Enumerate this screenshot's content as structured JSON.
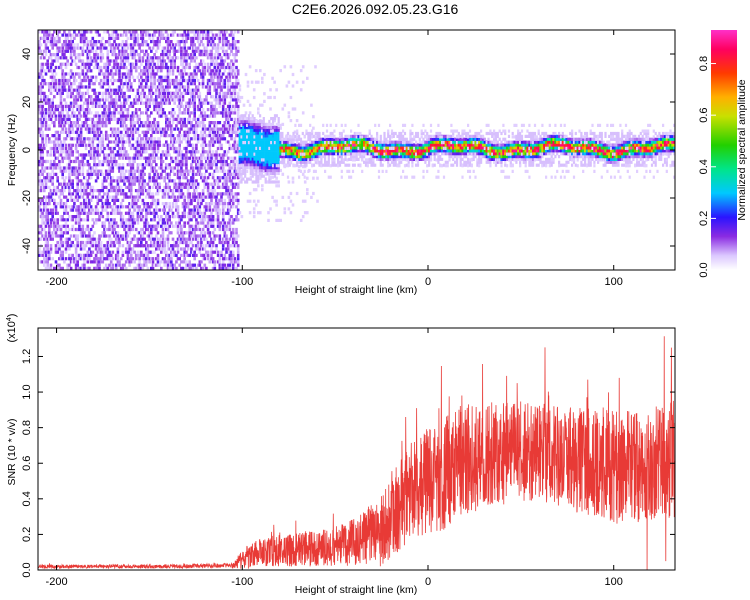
{
  "title": "C2E6.2026.092.05.23.G16",
  "chart_data": [
    {
      "type": "heatmap",
      "name": "spectrogram",
      "xlabel": "Height of straight line (km)",
      "ylabel": "Frequency (Hz)",
      "xlim": [
        -210,
        133
      ],
      "ylim": [
        -50,
        50
      ],
      "xticks": [
        -200,
        -100,
        0,
        100
      ],
      "yticks": [
        -40,
        -20,
        0,
        20,
        40
      ],
      "xtick_labels": [
        "-200",
        "-100",
        "0",
        "100"
      ],
      "ytick_labels": [
        "-40",
        "-20",
        "0",
        "20",
        "40"
      ],
      "description_regions": [
        {
          "x_range": [
            -210,
            -102
          ],
          "freq_range": [
            -50,
            50
          ],
          "amplitude": [
            0.05,
            0.15
          ],
          "pattern": "broadband noise"
        },
        {
          "x_range": [
            -102,
            133
          ],
          "freq_center": 0,
          "freq_halfwidth": 5,
          "amplitude_peak": 0.9,
          "pattern": "narrow line near 0 Hz"
        }
      ],
      "colorbar": {
        "label": "Normalized spectral amplitude",
        "range": [
          0.0,
          0.93
        ],
        "ticks": [
          0.0,
          0.2,
          0.4,
          0.6,
          0.8
        ],
        "tick_labels": [
          "0.0",
          "0.2",
          "0.4",
          "0.6",
          "0.8"
        ]
      }
    },
    {
      "type": "line",
      "name": "snr",
      "xlabel": "Height of straight line (km)",
      "ylabel": "SNR (10 * v/v)",
      "yscale_label": "(x10",
      "yscale_exp": "4",
      "yscale_close": ")",
      "xlim": [
        -210,
        133
      ],
      "ylim": [
        0,
        1.36
      ],
      "xticks": [
        -200,
        -100,
        0,
        100
      ],
      "yticks": [
        0.0,
        0.2,
        0.4,
        0.6,
        0.8,
        1.0,
        1.2
      ],
      "xtick_labels": [
        "-200",
        "-100",
        "0",
        "100"
      ],
      "ytick_labels": [
        "0.0",
        "0.2",
        "0.4",
        "0.6",
        "0.8",
        "1.0",
        "1.2"
      ],
      "color": "#e83a36",
      "series": [
        {
          "name": "SNR",
          "envelope_x": [
            -210,
            -150,
            -105,
            -100,
            -90,
            -80,
            -60,
            -45,
            -35,
            -25,
            -20,
            -15,
            -10,
            0,
            10,
            20,
            30,
            40,
            50,
            60,
            70,
            80,
            90,
            100,
            110,
            120,
            133
          ],
          "envelope_base": [
            0.02,
            0.02,
            0.025,
            0.06,
            0.1,
            0.12,
            0.12,
            0.14,
            0.18,
            0.22,
            0.3,
            0.36,
            0.45,
            0.5,
            0.55,
            0.62,
            0.64,
            0.66,
            0.66,
            0.66,
            0.64,
            0.62,
            0.6,
            0.58,
            0.58,
            0.6,
            0.62
          ],
          "envelope_spread": [
            0.01,
            0.01,
            0.012,
            0.06,
            0.08,
            0.1,
            0.1,
            0.12,
            0.15,
            0.2,
            0.25,
            0.25,
            0.28,
            0.3,
            0.32,
            0.32,
            0.3,
            0.3,
            0.28,
            0.28,
            0.28,
            0.3,
            0.3,
            0.32,
            0.32,
            0.32,
            0.34
          ],
          "notable_peaks": [
            {
              "x": -12,
              "y": 0.86
            },
            {
              "x": 48,
              "y": 1.05
            },
            {
              "x": 86,
              "y": 1.07
            },
            {
              "x": 103,
              "y": 1.08
            },
            {
              "x": 118,
              "y": 1.32
            },
            {
              "x": 131,
              "y": 1.25
            }
          ],
          "notable_dips": [
            {
              "x": 118,
              "y": 0.0
            },
            {
              "x": 128,
              "y": 0.05
            }
          ]
        }
      ]
    }
  ]
}
